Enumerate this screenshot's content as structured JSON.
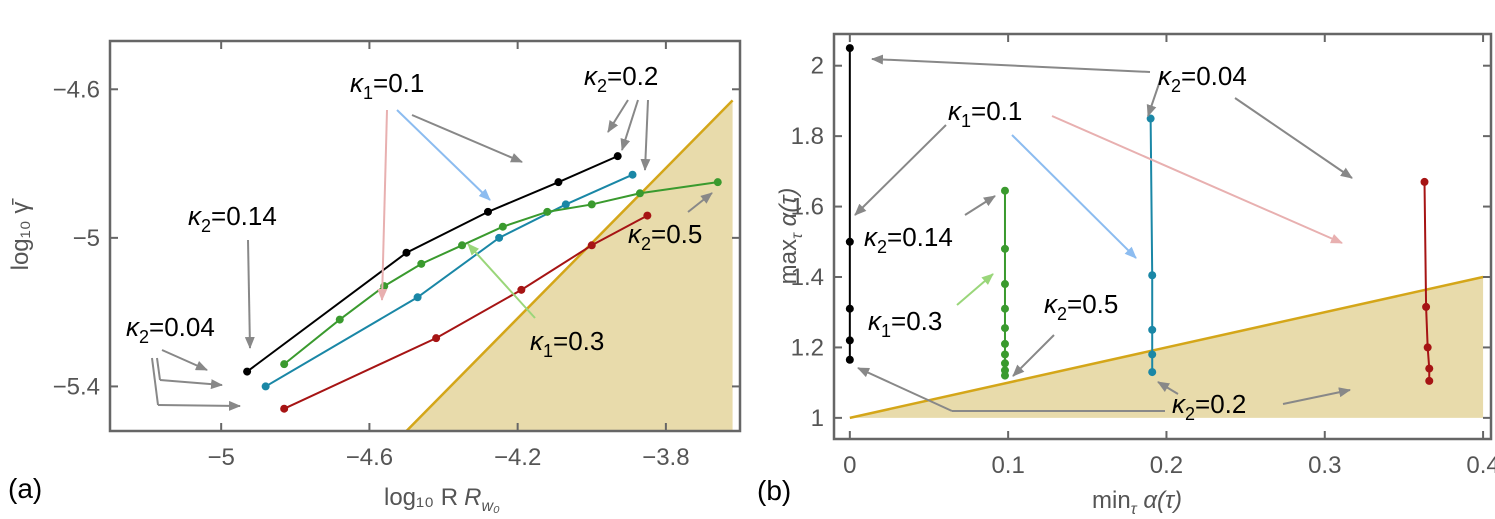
{
  "panels": {
    "a": "(a)",
    "b": "(b)"
  },
  "colors": {
    "black": "#000000",
    "teal": "#1a87a6",
    "red": "#a61414",
    "green": "#3a9a2e",
    "region_fill": "#e8dbab",
    "region_edge": "#d4a619",
    "arrow_gray": "#888888",
    "arrow_pink": "#e8b0b0",
    "arrow_blue": "#8cbcf0",
    "arrow_lightgreen": "#9ad67a"
  },
  "chart_data": [
    {
      "type": "line",
      "panel": "(a)",
      "xlabel": "log₁₀ R",
      "xlabel_sub": "w₀",
      "ylabel": "log₁₀ γ̄",
      "xlim": [
        -5.3,
        -3.6
      ],
      "ylim": [
        -5.52,
        -4.47
      ],
      "xticks": [
        -5,
        -4.6,
        -4.2,
        -3.8
      ],
      "xtick_labels": [
        "−5",
        "−4.6",
        "−4.2",
        "−3.8"
      ],
      "yticks": [
        -5.4,
        -5,
        -4.6
      ],
      "ytick_labels": [
        "−5.4",
        "−5",
        "−4.6"
      ],
      "shaded_region": {
        "vertices": [
          [
            -4.5,
            -5.52
          ],
          [
            -3.62,
            -4.63
          ],
          [
            -3.62,
            -5.52
          ]
        ]
      },
      "series": [
        {
          "color_key": "black",
          "points": [
            [
              -4.93,
              -5.36
            ],
            [
              -4.5,
              -5.04
            ],
            [
              -4.28,
              -4.93
            ],
            [
              -4.09,
              -4.85
            ],
            [
              -3.93,
              -4.78
            ]
          ]
        },
        {
          "color_key": "teal",
          "points": [
            [
              -4.88,
              -5.4
            ],
            [
              -4.47,
              -5.16
            ],
            [
              -4.25,
              -5.0
            ],
            [
              -4.07,
              -4.91
            ],
            [
              -3.89,
              -4.83
            ]
          ]
        },
        {
          "color_key": "red",
          "points": [
            [
              -4.83,
              -5.46
            ],
            [
              -4.42,
              -5.27
            ],
            [
              -4.19,
              -5.14
            ],
            [
              -4.0,
              -5.02
            ],
            [
              -3.85,
              -4.94
            ]
          ]
        },
        {
          "color_key": "green",
          "points": [
            [
              -4.83,
              -5.34
            ],
            [
              -4.68,
              -5.22
            ],
            [
              -4.56,
              -5.13
            ],
            [
              -4.46,
              -5.07
            ],
            [
              -4.35,
              -5.02
            ],
            [
              -4.24,
              -4.97
            ],
            [
              -4.12,
              -4.93
            ],
            [
              -4.0,
              -4.91
            ],
            [
              -3.87,
              -4.88
            ],
            [
              -3.66,
              -4.85
            ]
          ]
        }
      ],
      "annotations": {
        "k1_01": {
          "symbol": "κ",
          "sub": "1",
          "text": "=0.1"
        },
        "k2_02": {
          "symbol": "κ",
          "sub": "2",
          "text": "=0.2"
        },
        "k2_014": {
          "symbol": "κ",
          "sub": "2",
          "text": "=0.14"
        },
        "k2_05": {
          "symbol": "κ",
          "sub": "2",
          "text": "=0.5"
        },
        "k2_004": {
          "symbol": "κ",
          "sub": "2",
          "text": "=0.04"
        },
        "k1_03": {
          "symbol": "κ",
          "sub": "1",
          "text": "=0.3"
        }
      }
    },
    {
      "type": "line",
      "panel": "(b)",
      "xlabel": "min",
      "xlabel_sub": "τ",
      "xlabel_rest": " α(τ)",
      "ylabel": "max",
      "ylabel_sub": "τ",
      "ylabel_rest": " α(τ)",
      "xlim": [
        -0.01,
        0.405
      ],
      "ylim": [
        0.94,
        2.09
      ],
      "xticks": [
        0,
        0.1,
        0.2,
        0.3,
        0.4
      ],
      "xtick_labels": [
        "0",
        "0.1",
        "0.2",
        "0.3",
        "0.4"
      ],
      "yticks": [
        1,
        1.2,
        1.4,
        1.6,
        1.8,
        2
      ],
      "ytick_labels": [
        "1",
        "1.2",
        "1.4",
        "1.6",
        "1.8",
        "2"
      ],
      "shaded_region": {
        "vertices": [
          [
            0,
            1.0
          ],
          [
            0.4,
            1.4
          ],
          [
            0.4,
            1.0
          ]
        ]
      },
      "series": [
        {
          "color_key": "black",
          "points": [
            [
              0.0,
              2.05
            ],
            [
              0.0,
              1.5
            ],
            [
              0.0,
              1.31
            ],
            [
              0.0,
              1.22
            ],
            [
              0.0,
              1.165
            ]
          ]
        },
        {
          "color_key": "teal",
          "points": [
            [
              0.19,
              1.85
            ],
            [
              0.191,
              1.405
            ],
            [
              0.191,
              1.25
            ],
            [
              0.191,
              1.18
            ],
            [
              0.191,
              1.13
            ]
          ]
        },
        {
          "color_key": "red",
          "points": [
            [
              0.363,
              1.67
            ],
            [
              0.364,
              1.315
            ],
            [
              0.365,
              1.2
            ],
            [
              0.366,
              1.14
            ],
            [
              0.366,
              1.105
            ]
          ]
        },
        {
          "color_key": "green",
          "points": [
            [
              0.098,
              1.645
            ],
            [
              0.098,
              1.48
            ],
            [
              0.098,
              1.38
            ],
            [
              0.098,
              1.31
            ],
            [
              0.098,
              1.255
            ],
            [
              0.098,
              1.21
            ],
            [
              0.098,
              1.18
            ],
            [
              0.098,
              1.155
            ],
            [
              0.098,
              1.135
            ],
            [
              0.098,
              1.12
            ]
          ]
        }
      ],
      "annotations": {
        "k2_004": {
          "symbol": "κ",
          "sub": "2",
          "text": "=0.04"
        },
        "k1_01": {
          "symbol": "κ",
          "sub": "1",
          "text": "=0.1"
        },
        "k2_014": {
          "symbol": "κ",
          "sub": "2",
          "text": "=0.14"
        },
        "k1_03": {
          "symbol": "κ",
          "sub": "1",
          "text": "=0.3"
        },
        "k2_05": {
          "symbol": "κ",
          "sub": "2",
          "text": "=0.5"
        },
        "k2_02": {
          "symbol": "κ",
          "sub": "2",
          "text": "=0.2"
        }
      }
    }
  ]
}
